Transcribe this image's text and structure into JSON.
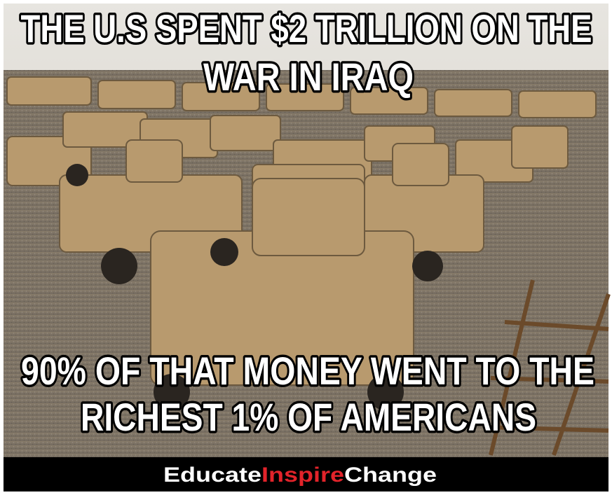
{
  "top_caption": [
    "THE U.S SPENT $2 TRILLION ON THE",
    "WAR IN IRAQ"
  ],
  "bottom_caption": [
    "90% OF THAT MONEY WENT TO THE",
    "RICHEST 1% OF AMERICANS"
  ],
  "footer": {
    "parts": [
      "Educate",
      "Inspire",
      "Change"
    ]
  }
}
